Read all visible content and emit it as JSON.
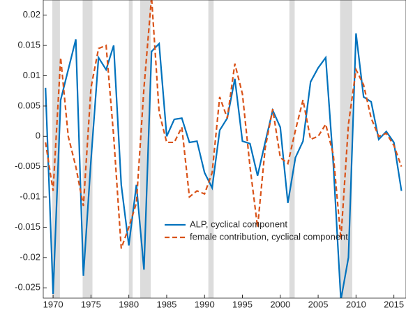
{
  "chart_data": {
    "type": "line",
    "x": [
      1969,
      1970,
      1971,
      1972,
      1973,
      1974,
      1975,
      1976,
      1977,
      1978,
      1979,
      1980,
      1981,
      1982,
      1983,
      1984,
      1985,
      1986,
      1987,
      1988,
      1989,
      1990,
      1991,
      1992,
      1993,
      1994,
      1995,
      1996,
      1997,
      1998,
      1999,
      2000,
      2001,
      2002,
      2003,
      2004,
      2005,
      2006,
      2007,
      2008,
      2009,
      2010,
      2011,
      2012,
      2013,
      2014,
      2015,
      2016
    ],
    "series": [
      {
        "name": "ALP, cyclical component",
        "color": "#0072bd",
        "dashed": false,
        "values": [
          0.008,
          -0.026,
          0.006,
          0.011,
          0.016,
          -0.023,
          -0.004,
          0.013,
          0.011,
          0.015,
          -0.008,
          -0.018,
          -0.008,
          -0.022,
          0.014,
          0.0153,
          0.0,
          0.0028,
          0.003,
          -0.001,
          -0.0008,
          -0.006,
          -0.0085,
          0.001,
          0.003,
          0.0095,
          -0.0008,
          -0.0012,
          -0.0065,
          -0.001,
          0.0043,
          0.0015,
          -0.011,
          -0.0035,
          -0.0008,
          0.009,
          0.0113,
          0.013,
          -0.0045,
          -0.027,
          -0.02,
          0.017,
          0.0065,
          0.0057,
          -0.0005,
          0.0008,
          -0.001,
          -0.009
        ]
      },
      {
        "name": "female contribution, cyclical component",
        "color": "#d95319",
        "dashed": true,
        "values": [
          -0.001,
          -0.009,
          0.013,
          0.0,
          -0.005,
          -0.0115,
          0.008,
          0.0145,
          0.015,
          0.0,
          -0.0185,
          -0.015,
          -0.011,
          0.008,
          0.023,
          0.004,
          -0.001,
          -0.001,
          0.0015,
          -0.01,
          -0.009,
          -0.0095,
          -0.006,
          0.0065,
          0.003,
          0.012,
          0.007,
          -0.005,
          -0.015,
          -0.002,
          0.0045,
          -0.0035,
          -0.0045,
          0.001,
          0.006,
          -0.0005,
          0.0,
          0.002,
          -0.003,
          -0.017,
          0.002,
          0.011,
          0.0085,
          0.003,
          0.0,
          0.0005,
          -0.0015,
          -0.005
        ]
      }
    ],
    "shaded_periods": [
      [
        1969.9,
        1970.9
      ],
      [
        1973.9,
        1975.2
      ],
      [
        1980.0,
        1980.5
      ],
      [
        1981.5,
        1982.9
      ],
      [
        1990.5,
        1991.2
      ],
      [
        2001.2,
        2001.9
      ],
      [
        2007.9,
        2009.5
      ]
    ],
    "xlim": [
      1968.7,
      2016.6
    ],
    "ylim": [
      -0.0267,
      0.0225
    ],
    "xticks": [
      1970,
      1975,
      1980,
      1985,
      1990,
      1995,
      2000,
      2005,
      2010,
      2015
    ],
    "yticks": [
      0.02,
      0.015,
      0.01,
      0.005,
      0,
      -0.005,
      -0.01,
      -0.015,
      -0.02,
      -0.025
    ]
  }
}
